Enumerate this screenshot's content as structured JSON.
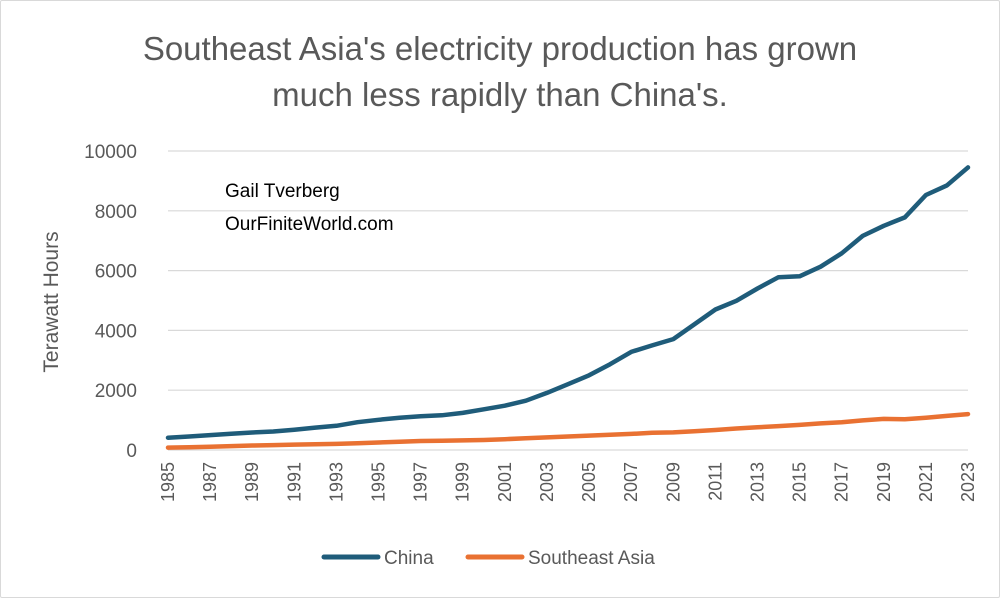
{
  "chart_data": {
    "type": "line",
    "title": "Southeast Asia's electricity production has grown much less rapidly than China's.",
    "title_lines": [
      "Southeast Asia's electricity production has grown",
      "much less rapidly than China's."
    ],
    "ylabel": "Terawatt Hours",
    "xlabel": "",
    "ylim": [
      0,
      10000
    ],
    "yticks": [
      "0",
      "2000",
      "4000",
      "6000",
      "8000",
      "10000"
    ],
    "xlim": [
      1985,
      2023
    ],
    "xticks": [
      "1985",
      "1987",
      "1989",
      "1991",
      "1993",
      "1995",
      "1997",
      "1999",
      "2001",
      "2003",
      "2005",
      "2007",
      "2009",
      "2011",
      "2013",
      "2015",
      "2017",
      "2019",
      "2021",
      "2023"
    ],
    "grid": true,
    "legend": "bottom",
    "annotation": [
      "Gail Tverberg",
      "OurFiniteWorld.com"
    ],
    "x": [
      1985,
      1986,
      1987,
      1988,
      1989,
      1990,
      1991,
      1992,
      1993,
      1994,
      1995,
      1996,
      1997,
      1998,
      1999,
      2000,
      2001,
      2002,
      2003,
      2004,
      2005,
      2006,
      2007,
      2008,
      2009,
      2010,
      2011,
      2012,
      2013,
      2014,
      2015,
      2016,
      2017,
      2018,
      2019,
      2020,
      2021,
      2022,
      2023
    ],
    "series": [
      {
        "name": "China",
        "color": "#1f5c7a",
        "values": [
          410,
          450,
          500,
          545,
          585,
          620,
          680,
          750,
          810,
          930,
          1010,
          1080,
          1130,
          1160,
          1240,
          1360,
          1480,
          1650,
          1910,
          2200,
          2500,
          2870,
          3280,
          3500,
          3710,
          4200,
          4700,
          4990,
          5400,
          5780,
          5810,
          6130,
          6580,
          7160,
          7500,
          7780,
          8530,
          8850,
          9450
        ]
      },
      {
        "name": "Southeast Asia",
        "color": "#e97132",
        "values": [
          80,
          95,
          110,
          130,
          150,
          165,
          180,
          190,
          205,
          225,
          250,
          275,
          300,
          310,
          320,
          335,
          360,
          390,
          420,
          450,
          480,
          510,
          540,
          575,
          590,
          630,
          670,
          720,
          760,
          800,
          840,
          890,
          930,
          990,
          1040,
          1030,
          1080,
          1140,
          1200
        ]
      }
    ]
  }
}
